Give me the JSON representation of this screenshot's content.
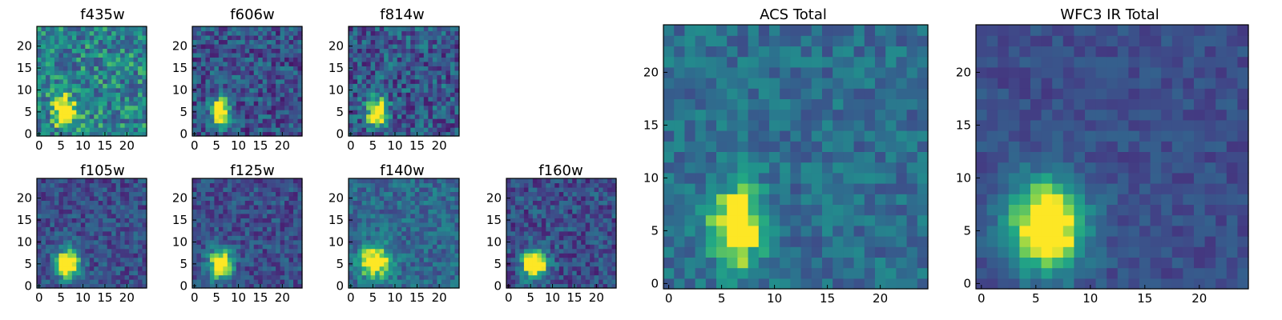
{
  "chart_data": {
    "type": "heatmap",
    "colormap": "viridis",
    "panels": [
      {
        "id": "f435w",
        "title": "f435w",
        "xticks": [
          0,
          5,
          10,
          15,
          20
        ],
        "yticks": [
          0,
          5,
          10,
          15,
          20
        ],
        "source": {
          "x": 6,
          "y": 5,
          "sx": 1.7,
          "sy": 2.3,
          "amp": 0.62
        },
        "background": 0.55,
        "noise": 0.28
      },
      {
        "id": "f606w",
        "title": "f606w",
        "xticks": [
          0,
          5,
          10,
          15,
          20
        ],
        "yticks": [
          0,
          5,
          10,
          15,
          20
        ],
        "source": {
          "x": 6,
          "y": 5,
          "sx": 1.6,
          "sy": 2.2,
          "amp": 0.7
        },
        "background": 0.32,
        "noise": 0.24
      },
      {
        "id": "f814w",
        "title": "f814w",
        "xticks": [
          0,
          5,
          10,
          15,
          20
        ],
        "yticks": [
          0,
          5,
          10,
          15,
          20
        ],
        "source": {
          "x": 6,
          "y": 5,
          "sx": 1.6,
          "sy": 2.2,
          "amp": 0.72
        },
        "background": 0.35,
        "noise": 0.26
      },
      {
        "id": "f105w",
        "title": "f105w",
        "xticks": [
          0,
          5,
          10,
          15,
          20
        ],
        "yticks": [
          0,
          5,
          10,
          15,
          20
        ],
        "source": {
          "x": 6.5,
          "y": 5,
          "sx": 2.0,
          "sy": 2.4,
          "amp": 0.7
        },
        "background": 0.3,
        "noise": 0.18
      },
      {
        "id": "f125w",
        "title": "f125w",
        "xticks": [
          0,
          5,
          10,
          15,
          20
        ],
        "yticks": [
          0,
          5,
          10,
          15,
          20
        ],
        "source": {
          "x": 6,
          "y": 5,
          "sx": 1.9,
          "sy": 2.4,
          "amp": 0.72
        },
        "background": 0.3,
        "noise": 0.18
      },
      {
        "id": "f140w",
        "title": "f140w",
        "xticks": [
          0,
          5,
          10,
          15,
          20
        ],
        "yticks": [
          0,
          5,
          10,
          15,
          20
        ],
        "source": {
          "x": 5.5,
          "y": 5.5,
          "sx": 2.3,
          "sy": 2.6,
          "amp": 0.6
        },
        "background": 0.42,
        "noise": 0.18
      },
      {
        "id": "f160w",
        "title": "f160w",
        "xticks": [
          0,
          5,
          10,
          15,
          20
        ],
        "yticks": [
          0,
          5,
          10,
          15,
          20
        ],
        "source": {
          "x": 6,
          "y": 5,
          "sx": 2.0,
          "sy": 2.4,
          "amp": 0.72
        },
        "background": 0.3,
        "noise": 0.2
      },
      {
        "id": "acs_total",
        "title": "ACS Total",
        "xticks": [
          0,
          5,
          10,
          15,
          20
        ],
        "yticks": [
          0,
          5,
          10,
          15,
          20
        ],
        "source": {
          "x": 6.5,
          "y": 5.5,
          "sx": 1.7,
          "sy": 2.6,
          "amp": 0.62
        },
        "background": 0.45,
        "noise": 0.16
      },
      {
        "id": "wfc3_ir_total",
        "title": "WFC3 IR Total",
        "xticks": [
          0,
          5,
          10,
          15,
          20
        ],
        "yticks": [
          0,
          5,
          10,
          15,
          20
        ],
        "source": {
          "x": 6,
          "y": 5.5,
          "sx": 2.5,
          "sy": 3.1,
          "amp": 0.72
        },
        "background": 0.3,
        "noise": 0.1
      }
    ],
    "grid_size": 25,
    "x_range": [
      -0.5,
      24.5
    ],
    "y_range": [
      -0.5,
      24.5
    ]
  }
}
